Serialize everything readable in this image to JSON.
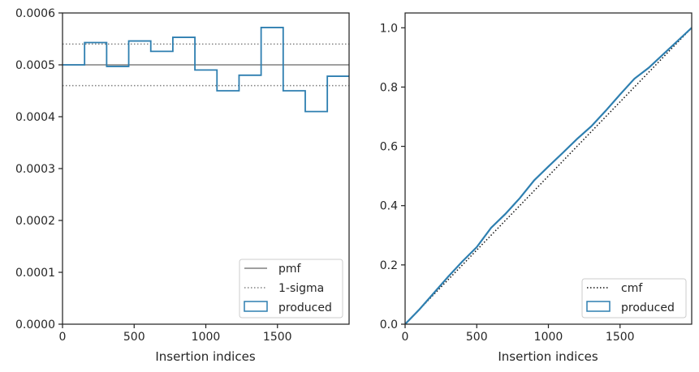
{
  "colors": {
    "produced": "#2e7fb0",
    "pmf": "#808080",
    "sigma": "#808080",
    "cmf": "#111111",
    "axis": "#262626"
  },
  "chart_data": [
    {
      "type": "histogram-step",
      "xlabel": "Insertion indices",
      "ylabel": "",
      "xlim": [
        0,
        2000
      ],
      "ylim": [
        0,
        0.0006
      ],
      "xticks": [
        0,
        500,
        1000,
        1500
      ],
      "xtick_labels": [
        "0",
        "500",
        "1000",
        "1500"
      ],
      "yticks": [
        0,
        0.0001,
        0.0002,
        0.0003,
        0.0004,
        0.0005,
        0.0006
      ],
      "ytick_labels": [
        "0.0000",
        "0.0001",
        "0.0002",
        "0.0003",
        "0.0004",
        "0.0005",
        "0.0006"
      ],
      "grid": false,
      "legend_position": "lower-right",
      "series": [
        {
          "name": "pmf",
          "kind": "hline",
          "style": "solid",
          "y": 0.0005
        },
        {
          "name": "1-sigma",
          "kind": "hlines",
          "style": "dotted",
          "y": [
            0.00046,
            0.00054
          ]
        },
        {
          "name": "produced",
          "kind": "step",
          "bin_edges": [
            0,
            154,
            308,
            462,
            616,
            770,
            924,
            1078,
            1232,
            1386,
            1540,
            1694,
            1848,
            2000
          ],
          "values": [
            0.0005,
            0.000543,
            0.000497,
            0.000546,
            0.000526,
            0.000553,
            0.00049,
            0.00045,
            0.00048,
            0.000572,
            0.00045,
            0.00041,
            0.000478
          ]
        }
      ]
    },
    {
      "type": "line",
      "xlabel": "Insertion indices",
      "ylabel": "",
      "xlim": [
        0,
        2000
      ],
      "ylim": [
        0,
        1.05
      ],
      "xticks": [
        0,
        500,
        1000,
        1500
      ],
      "xtick_labels": [
        "0",
        "500",
        "1000",
        "1500"
      ],
      "yticks": [
        0,
        0.2,
        0.4,
        0.6,
        0.8,
        1.0
      ],
      "ytick_labels": [
        "0.0",
        "0.2",
        "0.4",
        "0.6",
        "0.8",
        "1.0"
      ],
      "grid": false,
      "legend_position": "lower-right",
      "series": [
        {
          "name": "cmf",
          "style": "dotted",
          "x": [
            0,
            2000
          ],
          "y": [
            0,
            1.0
          ]
        },
        {
          "name": "produced",
          "style": "solid",
          "x": [
            0,
            100,
            200,
            300,
            400,
            500,
            600,
            700,
            800,
            900,
            1000,
            1100,
            1200,
            1300,
            1400,
            1500,
            1600,
            1700,
            1800,
            1900,
            2000
          ],
          "y": [
            0,
            0.05,
            0.105,
            0.16,
            0.212,
            0.26,
            0.325,
            0.372,
            0.425,
            0.485,
            0.532,
            0.578,
            0.625,
            0.668,
            0.72,
            0.775,
            0.828,
            0.865,
            0.91,
            0.955,
            1.0
          ]
        }
      ]
    }
  ]
}
